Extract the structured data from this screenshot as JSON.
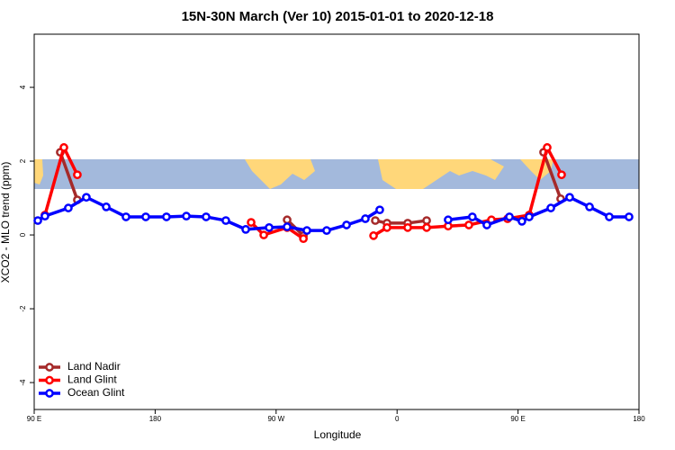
{
  "chart_data": {
    "type": "line",
    "title": "15N-30N March (Ver 10)   2015-01-01 to 2020-12-18",
    "x_label": "Longitude",
    "y_label": "XCO2 - MLO trend (ppm)",
    "xlim": [
      90,
      540
    ],
    "ylim": [
      -4.73,
      5.44
    ],
    "xticks": [
      {
        "value": 90,
        "label": "90 E"
      },
      180,
      {
        "value": 270,
        "label": "90 W"
      },
      {
        "value": 360,
        "label": "0"
      },
      {
        "value": 450,
        "label": "90 E"
      },
      {
        "value": 540,
        "label": "180"
      }
    ],
    "yticks": [
      -4,
      -2,
      0,
      2,
      4
    ],
    "legend": "bottom left",
    "series": [
      {
        "name": "Land Nadir",
        "color": "#a52a2a",
        "x": [
          109.4,
          122.1,
          null,
          278.2,
          290.3,
          null,
          343.8,
          352.5,
          367.9,
          382,
          null,
          469,
          481.7
        ],
        "values": [
          2.24,
          0.95,
          null,
          0.41,
          -0.02,
          null,
          0.39,
          0.32,
          0.32,
          0.39,
          null,
          2.24,
          0.98
        ]
      },
      {
        "name": "Land Glint",
        "color": "#ff0000",
        "x": [
          98,
          112.1,
          122.1,
          null,
          251.4,
          260.8,
          278.2,
          290.3,
          null,
          342.5,
          352.5,
          367.9,
          382,
          398,
          413.4,
          430.2,
          442.2,
          458.3,
          471.7,
          482.4
        ],
        "values": [
          0.54,
          2.37,
          1.63,
          null,
          0.34,
          0,
          0.2,
          -0.1,
          null,
          -0.02,
          0.2,
          0.2,
          0.2,
          0.24,
          0.27,
          0.41,
          0.44,
          0.54,
          2.37,
          1.63
        ]
      },
      {
        "name": "Ocean Glint",
        "color": "#0000ff",
        "x": [
          92.7,
          98,
          115.4,
          128.8,
          143.6,
          158.3,
          173,
          188.4,
          203.2,
          217.9,
          232.6,
          247.4,
          264.8,
          278.2,
          292.9,
          307.6,
          322.4,
          336.4,
          347.1,
          null,
          398,
          416,
          426.8,
          443.6,
          452.9,
          458.3,
          474.4,
          488.4,
          503.2,
          517.9,
          532.6
        ],
        "values": [
          0.39,
          0.51,
          0.73,
          1.02,
          0.76,
          0.49,
          0.49,
          0.49,
          0.51,
          0.49,
          0.39,
          0.15,
          0.2,
          0.22,
          0.12,
          0.12,
          0.27,
          0.44,
          0.68,
          null,
          0.41,
          0.49,
          0.27,
          0.49,
          0.37,
          0.49,
          0.73,
          1.02,
          0.76,
          0.49,
          0.49
        ]
      }
    ]
  }
}
